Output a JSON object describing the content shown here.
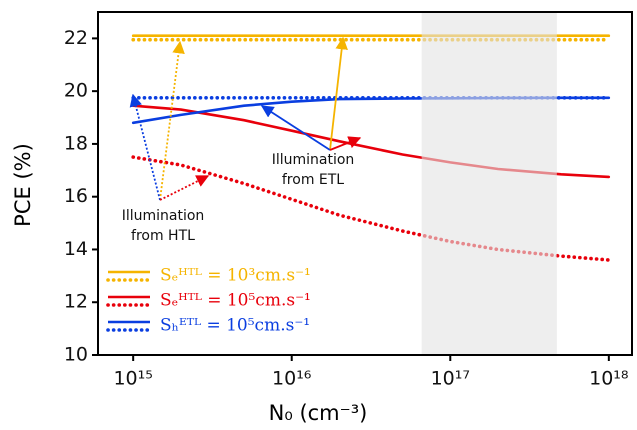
{
  "chart_data": {
    "type": "line",
    "xlabel": "N₀ (cm⁻³)",
    "ylabel": "PCE (%)",
    "x_scale": "log",
    "x": [
      1000000000000000.0,
      2000000000000000.0,
      5000000000000000.0,
      1e+16,
      2e+16,
      5e+16,
      1e+17,
      2e+17,
      5e+17,
      1e+18
    ],
    "series": [
      {
        "name": "Sₑᴴᵀᴸ = 10³cm.s⁻¹",
        "color": "#f5b400",
        "illumination_from_etl": [
          22.1,
          22.1,
          22.1,
          22.1,
          22.1,
          22.1,
          22.1,
          22.1,
          22.1,
          22.1
        ],
        "illumination_from_htl": [
          21.95,
          21.95,
          21.95,
          21.95,
          21.95,
          21.95,
          21.95,
          21.95,
          21.95,
          21.95
        ]
      },
      {
        "name": "Sₑᴴᵀᴸ = 10⁵cm.s⁻¹",
        "color": "#e8000b",
        "illumination_from_etl": [
          19.45,
          19.3,
          18.9,
          18.5,
          18.1,
          17.6,
          17.3,
          17.05,
          16.85,
          16.75
        ],
        "illumination_from_htl": [
          17.5,
          17.2,
          16.5,
          15.9,
          15.3,
          14.7,
          14.3,
          14.0,
          13.75,
          13.6
        ]
      },
      {
        "name": "Sₕᴱᵀᴸ = 10⁵cm.s⁻¹",
        "color": "#0a3ee0",
        "illumination_from_etl": [
          18.8,
          19.1,
          19.45,
          19.6,
          19.7,
          19.72,
          19.73,
          19.74,
          19.75,
          19.75
        ],
        "illumination_from_htl": [
          19.75,
          19.75,
          19.75,
          19.75,
          19.75,
          19.75,
          19.75,
          19.75,
          19.75,
          19.75
        ]
      }
    ],
    "shaded_region": [
      6.6e+16,
      4.7e+17
    ],
    "annotations": [
      [
        "Illumination",
        "from ETL"
      ],
      [
        "Illumination",
        "from HTL"
      ]
    ],
    "xlim": [
      600000000000000.0,
      1.4e+18
    ],
    "xticks": [
      {
        "value": 1000000000000000.0,
        "label": "10¹⁵"
      },
      {
        "value": 1e+16,
        "label": "10¹⁶"
      },
      {
        "value": 1e+17,
        "label": "10¹⁷"
      },
      {
        "value": 1e+18,
        "label": "10¹⁸"
      }
    ],
    "ylim": [
      10,
      23
    ],
    "yticks": [
      10,
      12,
      14,
      16,
      18,
      20,
      22
    ],
    "legend": "lower left"
  }
}
